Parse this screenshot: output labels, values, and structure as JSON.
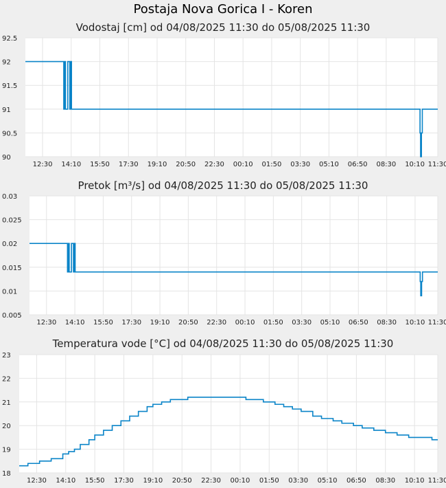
{
  "title": "Postaja Nova Gorica I - Koren",
  "colors": {
    "line": "#0a84c8",
    "grid": "#e4e4e4",
    "plot_bg": "#ffffff",
    "page_bg": "#efefef"
  },
  "chart_data": [
    {
      "type": "line",
      "title": "Vodostaj [cm] od 04/08/2025 11:30 do 05/08/2025 11:30",
      "xlabel": "",
      "ylabel": "",
      "yticks": [
        "92.5",
        "92",
        "91.5",
        "91",
        "90.5",
        "90"
      ],
      "ylim": [
        90,
        92.5
      ],
      "xticks": [
        "12:30",
        "14:10",
        "15:50",
        "17:30",
        "19:10",
        "20:50",
        "22:30",
        "00:10",
        "01:50",
        "03:30",
        "05:10",
        "06:50",
        "08:30",
        "10:10",
        "11:30"
      ],
      "xlim_minutes": [
        0,
        1440
      ],
      "grid": true,
      "series": [
        {
          "x": [
            0,
            130,
            134,
            137,
            140,
            144,
            148,
            155,
            158,
            161,
            164,
            168,
            1375,
            1378,
            1380,
            1383,
            1386,
            1390,
            1393,
            1440
          ],
          "y": [
            92,
            92,
            91,
            92,
            91,
            91,
            92,
            91,
            92,
            91,
            91,
            91,
            91,
            90.5,
            90,
            90.5,
            91,
            91,
            91,
            91
          ]
        }
      ]
    },
    {
      "type": "line",
      "title": "Pretok [m³/s] od 04/08/2025 11:30 do 05/08/2025 11:30",
      "xlabel": "",
      "ylabel": "",
      "yticks": [
        "0.03",
        "0.025",
        "0.02",
        "0.015",
        "0.01",
        "0.005"
      ],
      "ylim": [
        0.005,
        0.03
      ],
      "xticks": [
        "12:30",
        "14:10",
        "15:50",
        "17:30",
        "19:10",
        "20:50",
        "22:30",
        "00:10",
        "01:50",
        "03:30",
        "05:10",
        "06:50",
        "08:30",
        "10:10",
        "11:30"
      ],
      "xlim_minutes": [
        0,
        1440
      ],
      "grid": true,
      "series": [
        {
          "x": [
            0,
            130,
            134,
            137,
            140,
            144,
            148,
            155,
            158,
            161,
            164,
            168,
            1375,
            1378,
            1380,
            1383,
            1386,
            1390,
            1393,
            1440
          ],
          "y": [
            0.02,
            0.02,
            0.014,
            0.02,
            0.014,
            0.014,
            0.02,
            0.014,
            0.02,
            0.014,
            0.014,
            0.014,
            0.014,
            0.012,
            0.009,
            0.012,
            0.014,
            0.014,
            0.014,
            0.014
          ]
        }
      ]
    },
    {
      "type": "line",
      "title": "Temperatura vode [°C] od 04/08/2025 11:30 do 05/08/2025 11:30",
      "xlabel": "",
      "ylabel": "",
      "yticks": [
        "23",
        "22",
        "21",
        "20",
        "19",
        "18"
      ],
      "ylim": [
        18,
        23
      ],
      "xticks": [
        "12:30",
        "14:10",
        "15:50",
        "17:30",
        "19:10",
        "20:50",
        "22:30",
        "00:10",
        "01:50",
        "03:30",
        "05:10",
        "06:50",
        "08:30",
        "10:10",
        "11:30"
      ],
      "xlim_minutes": [
        0,
        1440
      ],
      "grid": true,
      "series": [
        {
          "x": [
            0,
            30,
            70,
            110,
            150,
            170,
            190,
            210,
            240,
            260,
            290,
            320,
            350,
            380,
            410,
            440,
            460,
            490,
            520,
            550,
            580,
            620,
            700,
            780,
            840,
            880,
            910,
            940,
            970,
            1010,
            1040,
            1080,
            1110,
            1150,
            1180,
            1220,
            1260,
            1300,
            1340,
            1380,
            1420,
            1440
          ],
          "y": [
            18.3,
            18.4,
            18.5,
            18.6,
            18.8,
            18.9,
            19.0,
            19.2,
            19.4,
            19.6,
            19.8,
            20.0,
            20.2,
            20.4,
            20.6,
            20.8,
            20.9,
            21.0,
            21.1,
            21.1,
            21.2,
            21.2,
            21.2,
            21.1,
            21.0,
            20.9,
            20.8,
            20.7,
            20.6,
            20.4,
            20.3,
            20.2,
            20.1,
            20.0,
            19.9,
            19.8,
            19.7,
            19.6,
            19.5,
            19.5,
            19.4,
            19.4
          ]
        }
      ]
    }
  ]
}
